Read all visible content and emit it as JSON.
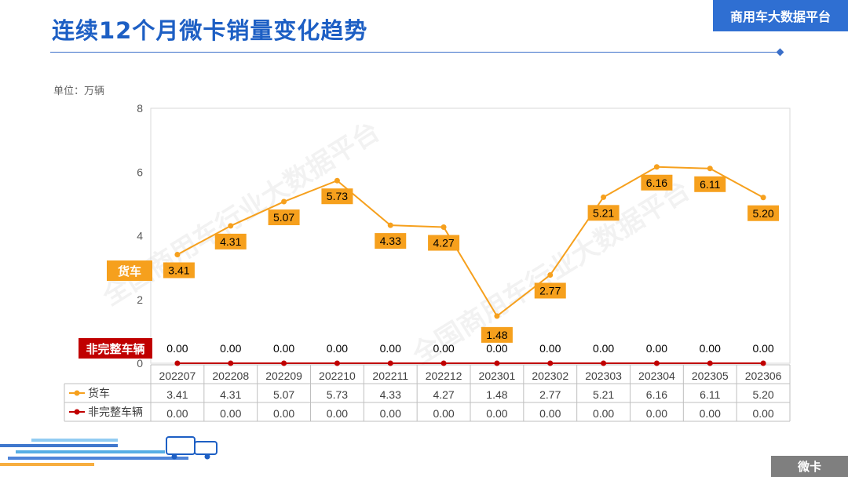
{
  "header": {
    "title": "连续12个月微卡销量变化趋势",
    "brand": "商用车大数据平台"
  },
  "unit_label": "单位：万辆",
  "watermark": "全国商用车行业大数据平台",
  "footer_tag": "微卡",
  "colors": {
    "truck": "#f6a01d",
    "incomplete": "#c00000",
    "label_bg": "#f6a01d",
    "title": "#1d5fc4"
  },
  "chart_data": {
    "type": "line",
    "categories": [
      "202207",
      "202208",
      "202209",
      "202210",
      "202211",
      "202212",
      "202301",
      "202302",
      "202303",
      "202304",
      "202305",
      "202306"
    ],
    "ylim": [
      0,
      8
    ],
    "yticks": [
      0,
      2,
      4,
      6,
      8
    ],
    "grid": false,
    "legend": "table-below",
    "series": [
      {
        "name": "货车",
        "values": [
          3.41,
          4.31,
          5.07,
          5.73,
          4.33,
          4.27,
          1.48,
          2.77,
          5.21,
          6.16,
          6.11,
          5.2
        ],
        "labels": [
          "3.41",
          "4.31",
          "5.07",
          "5.73",
          "4.33",
          "4.27",
          "1.48",
          "2.77",
          "5.21",
          "6.16",
          "6.11",
          "5.20"
        ]
      },
      {
        "name": "非完整车辆",
        "values": [
          0,
          0,
          0,
          0,
          0,
          0,
          0,
          0,
          0,
          0,
          0,
          0
        ],
        "labels": [
          "0.00",
          "0.00",
          "0.00",
          "0.00",
          "0.00",
          "0.00",
          "0.00",
          "0.00",
          "0.00",
          "0.00",
          "0.00",
          "0.00"
        ]
      }
    ]
  }
}
